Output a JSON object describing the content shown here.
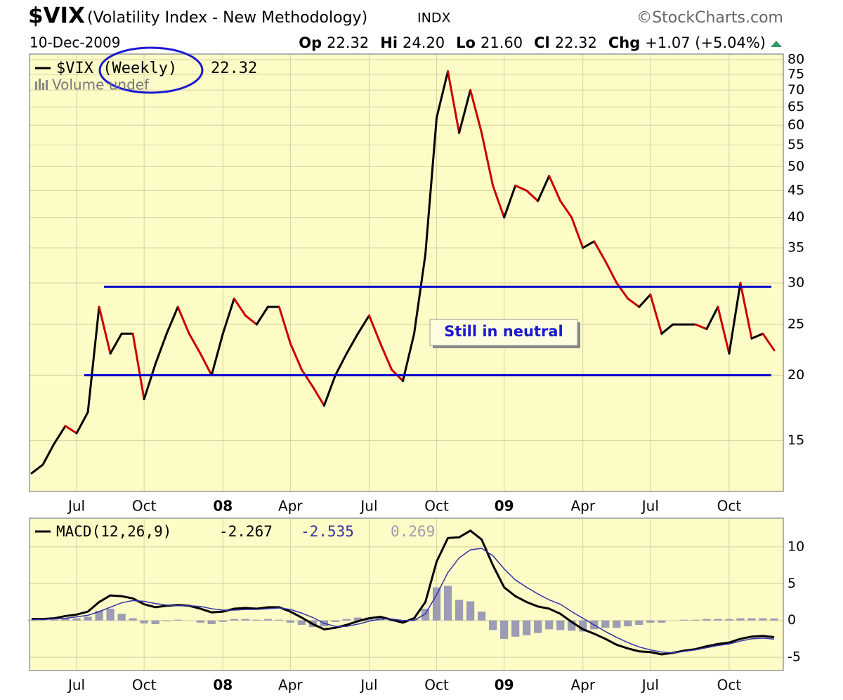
{
  "header": {
    "symbol": "$VIX",
    "description": "(Volatility Index - New Methodology)",
    "exchange": "INDX",
    "source": "©StockCharts.com",
    "date": "10-Dec-2009",
    "quote": [
      {
        "label": "Op",
        "value": "22.32"
      },
      {
        "label": "Hi",
        "value": "24.20"
      },
      {
        "label": "Lo",
        "value": "21.60"
      },
      {
        "label": "Cl",
        "value": "22.32"
      },
      {
        "label": "Chg",
        "value": "+1.07 (+5.04%)"
      }
    ]
  },
  "chart_data": [
    {
      "type": "line",
      "log_scale": true,
      "background": "#fdfbc6",
      "grid": true,
      "categories": [
        null,
        null,
        null,
        null,
        "Jul",
        null,
        null,
        null,
        null,
        null,
        "Oct",
        null,
        null,
        null,
        null,
        null,
        null,
        "08",
        null,
        null,
        null,
        null,
        null,
        "Apr",
        null,
        null,
        null,
        null,
        null,
        null,
        "Jul",
        null,
        null,
        null,
        null,
        null,
        "Oct",
        null,
        null,
        null,
        null,
        null,
        "09",
        null,
        null,
        null,
        null,
        null,
        null,
        "Apr",
        null,
        null,
        null,
        null,
        null,
        "Jul",
        null,
        null,
        null,
        null,
        null,
        null,
        "Oct",
        null,
        null,
        null,
        null
      ],
      "series": [
        {
          "name": "$VIX (Weekly)",
          "up_color": "#000000",
          "down_color": "#cc0000",
          "values": [
            13,
            13.5,
            14.8,
            16,
            15.5,
            17,
            27,
            22,
            24,
            24,
            18,
            21,
            24,
            27,
            24,
            22,
            20,
            24,
            28,
            26,
            25,
            27,
            27,
            23,
            20.5,
            19,
            17.5,
            20,
            22,
            24,
            26,
            23,
            20.5,
            19.5,
            24,
            34,
            62,
            76,
            58,
            70,
            58,
            46,
            40,
            46,
            45,
            43,
            48,
            43,
            40,
            35,
            36,
            33,
            30,
            28,
            27,
            28.5,
            24,
            25,
            25,
            25,
            24.5,
            27,
            22,
            30,
            23.5,
            24,
            22.32
          ]
        }
      ],
      "volume_label": "Volume undef",
      "ylim": [
        12,
        82
      ],
      "yticks": [
        15,
        20,
        25,
        30,
        35,
        40,
        45,
        50,
        55,
        60,
        65,
        70,
        75,
        80
      ],
      "reference_lines": [
        {
          "value": 29.5,
          "color": "#0000cc"
        },
        {
          "value": 20,
          "color": "#0000cc"
        }
      ],
      "annotation": "Still in neutral"
    },
    {
      "type": "macd",
      "background": "#fdfbc6",
      "grid": true,
      "series": [
        {
          "name": "MACD(12,26,9)",
          "color": "#000000",
          "values": [
            0.2,
            0.2,
            0.3,
            0.6,
            0.8,
            1.2,
            2.5,
            3.4,
            3.3,
            3.0,
            2.2,
            1.8,
            2.0,
            2.1,
            2.0,
            1.6,
            1.1,
            1.2,
            1.6,
            1.7,
            1.6,
            1.8,
            1.8,
            1.2,
            0.4,
            -0.5,
            -1.2,
            -1.0,
            -0.6,
            -0.1,
            0.3,
            0.5,
            0.1,
            -0.3,
            0.3,
            2.5,
            8.0,
            11.2,
            11.3,
            12.2,
            11.0,
            7.5,
            4.5,
            3.3,
            2.5,
            1.9,
            1.6,
            0.9,
            -0.2,
            -1.2,
            -1.8,
            -2.5,
            -3.3,
            -3.8,
            -4.2,
            -4.3,
            -4.6,
            -4.4,
            -4.1,
            -3.9,
            -3.5,
            -3.2,
            -3.0,
            -2.5,
            -2.2,
            -2.1,
            -2.267
          ]
        },
        {
          "color": "#3333aa",
          "values": [
            0.1,
            0.15,
            0.2,
            0.3,
            0.5,
            0.7,
            1.2,
            1.8,
            2.4,
            2.7,
            2.6,
            2.3,
            2.1,
            2.0,
            2.0,
            1.9,
            1.6,
            1.4,
            1.4,
            1.5,
            1.5,
            1.6,
            1.7,
            1.5,
            1.0,
            0.4,
            -0.4,
            -0.8,
            -0.8,
            -0.5,
            -0.1,
            0.2,
            0.2,
            0,
            0,
            0.9,
            3.5,
            6.5,
            8.5,
            9.6,
            9.8,
            8.8,
            7.0,
            5.5,
            4.5,
            3.6,
            2.8,
            2.2,
            1.2,
            0.3,
            -0.6,
            -1.5,
            -2.3,
            -3.0,
            -3.6,
            -4.0,
            -4.3,
            -4.4,
            -4.2,
            -4.0,
            -3.7,
            -3.4,
            -3.2,
            -2.8,
            -2.5,
            -2.4,
            -2.535
          ]
        },
        {
          "color": "#9c9cb4",
          "histogram": true,
          "values": [
            0.1,
            0.05,
            0.1,
            0.3,
            0.3,
            0.5,
            1.3,
            1.6,
            0.9,
            0.3,
            -0.4,
            -0.5,
            -0.1,
            0.1,
            0,
            -0.3,
            -0.5,
            -0.2,
            0.2,
            0.2,
            0.1,
            0.2,
            0.1,
            -0.3,
            -0.6,
            -0.9,
            -0.8,
            -0.2,
            0.2,
            0.4,
            0.4,
            0.3,
            -0.1,
            -0.3,
            0.3,
            1.6,
            4.5,
            4.7,
            2.8,
            2.6,
            1.2,
            -1.3,
            -2.5,
            -2.2,
            -2.0,
            -1.7,
            -1.2,
            -1.3,
            -1.4,
            -1.5,
            -1.2,
            -1.0,
            -1.0,
            -0.8,
            -0.6,
            -0.3,
            -0.3,
            0,
            0.1,
            0.1,
            0.2,
            0.2,
            0.2,
            0.3,
            0.3,
            0.3,
            0.269
          ]
        }
      ],
      "ylim": [
        -6.8,
        13.9
      ],
      "yticks": [
        -5,
        0,
        5,
        10
      ]
    }
  ]
}
